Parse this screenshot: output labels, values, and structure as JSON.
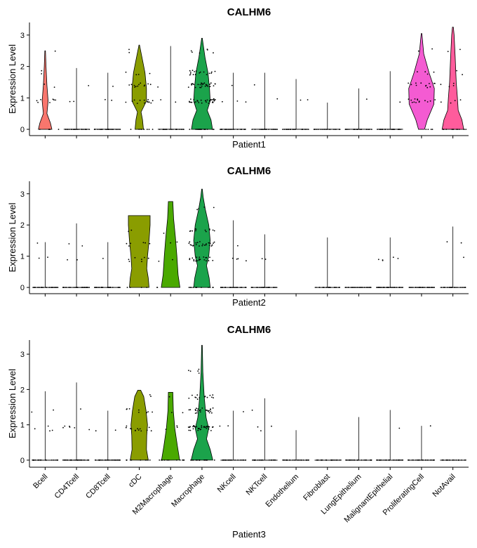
{
  "chart_data": [
    {
      "type": "violin",
      "title": "CALHM6",
      "xlabel": "Patient1",
      "ylabel": "Expression Level",
      "ylim": [
        -0.2,
        3.4
      ],
      "yticks": [
        0,
        1,
        2,
        3
      ],
      "categories": [
        "Bcell",
        "CD4Tcell",
        "CD8Tcell",
        "cDC",
        "M2Macrophage",
        "Macrophage",
        "NKcell",
        "NKTcell",
        "Endothelium",
        "Fibroblast",
        "LungEpithelium",
        "MalignantEpithelial",
        "ProliferatingCell",
        "NotAvail"
      ],
      "violins": [
        {
          "max": 2.5,
          "shape": [
            [
              0,
              0.45
            ],
            [
              0.2,
              0.35
            ],
            [
              0.5,
              0.12
            ],
            [
              0.9,
              0.2
            ],
            [
              1.4,
              0.12
            ],
            [
              2.0,
              0.06
            ],
            [
              2.5,
              0.02
            ]
          ]
        },
        {
          "max": 1.95,
          "shape": "flat"
        },
        {
          "max": 1.8,
          "shape": "flat"
        },
        {
          "max": 2.68,
          "shape": [
            [
              0,
              0.28
            ],
            [
              0.3,
              0.22
            ],
            [
              0.55,
              0.12
            ],
            [
              0.9,
              0.48
            ],
            [
              1.3,
              0.48
            ],
            [
              1.8,
              0.38
            ],
            [
              2.2,
              0.22
            ],
            [
              2.68,
              0.02
            ]
          ]
        },
        {
          "max": 2.65,
          "shape": "flat"
        },
        {
          "max": 2.9,
          "shape": [
            [
              0,
              0.7
            ],
            [
              0.3,
              0.6
            ],
            [
              0.6,
              0.35
            ],
            [
              0.9,
              0.55
            ],
            [
              1.3,
              0.5
            ],
            [
              1.8,
              0.4
            ],
            [
              2.3,
              0.2
            ],
            [
              2.9,
              0.02
            ]
          ]
        },
        {
          "max": 1.8,
          "shape": "flat"
        },
        {
          "max": 1.8,
          "shape": "flat"
        },
        {
          "max": 1.6,
          "shape": "flat"
        },
        {
          "max": 0.85,
          "shape": "flat"
        },
        {
          "max": 1.3,
          "shape": "flat"
        },
        {
          "max": 1.85,
          "shape": "flat"
        },
        {
          "max": 3.05,
          "shape": [
            [
              0,
              0.2
            ],
            [
              0.3,
              0.38
            ],
            [
              0.8,
              0.82
            ],
            [
              1.3,
              0.85
            ],
            [
              1.8,
              0.5
            ],
            [
              2.4,
              0.15
            ],
            [
              3.05,
              0.02
            ]
          ]
        },
        {
          "max": 3.25,
          "shape": [
            [
              0,
              0.72
            ],
            [
              0.3,
              0.6
            ],
            [
              0.6,
              0.35
            ],
            [
              1.0,
              0.3
            ],
            [
              1.5,
              0.22
            ],
            [
              2.3,
              0.15
            ],
            [
              3.0,
              0.08
            ],
            [
              3.25,
              0.03
            ]
          ]
        }
      ],
      "points": [
        {
          "density": [
            0.12,
            0.18,
            0.06,
            0.04,
            0.02
          ]
        },
        {
          "density": [
            0.6,
            0.05,
            0.02,
            0.01,
            0.0
          ]
        },
        {
          "density": [
            0.7,
            0.04,
            0.02,
            0.0,
            0.0
          ]
        },
        {
          "density": [
            0.2,
            0.35,
            0.3,
            0.1,
            0.04
          ]
        },
        {
          "density": [
            0.6,
            0.06,
            0.02,
            0.0,
            0.0
          ]
        },
        {
          "density": [
            0.5,
            0.8,
            0.7,
            0.45,
            0.15
          ]
        },
        {
          "density": [
            0.6,
            0.08,
            0.02,
            0.0,
            0.0
          ]
        },
        {
          "density": [
            0.6,
            0.03,
            0.02,
            0.0,
            0.0
          ]
        },
        {
          "density": [
            0.6,
            0.04,
            0.01,
            0.0,
            0.0
          ]
        },
        {
          "density": [
            0.5,
            0.02,
            0.0,
            0.0,
            0.0
          ]
        },
        {
          "density": [
            0.6,
            0.02,
            0.01,
            0.0,
            0.0
          ]
        },
        {
          "density": [
            0.7,
            0.03,
            0.01,
            0.0,
            0.0
          ]
        },
        {
          "density": [
            0.1,
            0.35,
            0.3,
            0.1,
            0.05
          ]
        },
        {
          "density": [
            0.3,
            0.1,
            0.1,
            0.06,
            0.04
          ]
        }
      ]
    },
    {
      "type": "violin",
      "title": "CALHM6",
      "xlabel": "Patient2",
      "ylabel": "Expression Level",
      "ylim": [
        -0.2,
        3.4
      ],
      "yticks": [
        0,
        1,
        2,
        3
      ],
      "categories": [
        "Bcell",
        "CD4Tcell",
        "CD8Tcell",
        "cDC",
        "M2Macrophage",
        "Macrophage",
        "NKcell",
        "NKTcell",
        "Endothelium",
        "Fibroblast",
        "LungEpithelium",
        "MalignantEpithelial",
        "ProliferatingCell",
        "NotAvail"
      ],
      "violins": [
        {
          "max": 1.45,
          "shape": "flat"
        },
        {
          "max": 2.05,
          "shape": "flat"
        },
        {
          "max": 1.45,
          "shape": "flat"
        },
        {
          "max": 2.3,
          "shape": [
            [
              0,
              0.65
            ],
            [
              0.3,
              0.6
            ],
            [
              0.6,
              0.5
            ],
            [
              1.0,
              0.55
            ],
            [
              1.5,
              0.65
            ],
            [
              2.0,
              0.72
            ],
            [
              2.3,
              0.72
            ]
          ]
        },
        {
          "max": 2.75,
          "shape": [
            [
              0,
              0.62
            ],
            [
              0.4,
              0.5
            ],
            [
              1.0,
              0.42
            ],
            [
              1.6,
              0.32
            ],
            [
              2.2,
              0.2
            ],
            [
              2.75,
              0.15
            ]
          ]
        },
        {
          "max": 3.15,
          "shape": [
            [
              0,
              0.55
            ],
            [
              0.3,
              0.48
            ],
            [
              0.7,
              0.3
            ],
            [
              1.0,
              0.45
            ],
            [
              1.5,
              0.55
            ],
            [
              2.0,
              0.45
            ],
            [
              2.5,
              0.22
            ],
            [
              2.9,
              0.08
            ],
            [
              3.15,
              0.02
            ]
          ]
        },
        {
          "max": 2.15,
          "shape": "flat"
        },
        {
          "max": 1.7,
          "shape": "flat"
        },
        {
          "max": 0.0,
          "shape": "none"
        },
        {
          "max": 1.6,
          "shape": "flat"
        },
        {
          "max": 0.0,
          "shape": "flat"
        },
        {
          "max": 1.6,
          "shape": "flat"
        },
        {
          "max": 0.0,
          "shape": "flat"
        },
        {
          "max": 1.95,
          "shape": "flat"
        }
      ],
      "points": [
        {
          "density": [
            0.6,
            0.04,
            0.02,
            0.0,
            0.0
          ]
        },
        {
          "density": [
            0.7,
            0.06,
            0.05,
            0.0,
            0.0
          ]
        },
        {
          "density": [
            0.7,
            0.02,
            0.01,
            0.0,
            0.0
          ]
        },
        {
          "density": [
            0.1,
            0.18,
            0.15,
            0.05,
            0.0
          ]
        },
        {
          "density": [
            0.05,
            0.04,
            0.04,
            0.02,
            0.0
          ]
        },
        {
          "density": [
            0.3,
            0.5,
            0.6,
            0.3,
            0.1
          ]
        },
        {
          "density": [
            0.6,
            0.1,
            0.03,
            0.0,
            0.0
          ]
        },
        {
          "density": [
            0.6,
            0.04,
            0.01,
            0.0,
            0.0
          ]
        },
        {
          "density": [
            0.02,
            0.0,
            0.0,
            0.0,
            0.0
          ]
        },
        {
          "density": [
            0.5,
            0.01,
            0.01,
            0.0,
            0.0
          ]
        },
        {
          "density": [
            0.6,
            0.0,
            0.0,
            0.0,
            0.0
          ]
        },
        {
          "density": [
            0.8,
            0.12,
            0.01,
            0.0,
            0.0
          ]
        },
        {
          "density": [
            0.7,
            0.0,
            0.0,
            0.0,
            0.0
          ]
        },
        {
          "density": [
            0.5,
            0.03,
            0.04,
            0.0,
            0.0
          ]
        }
      ]
    },
    {
      "type": "violin",
      "title": "CALHM6",
      "xlabel": "Patient3",
      "ylabel": "Expression Level",
      "ylim": [
        -0.2,
        3.4
      ],
      "yticks": [
        0,
        1,
        2,
        3
      ],
      "categories": [
        "Bcell",
        "CD4Tcell",
        "CD8Tcell",
        "cDC",
        "M2Macrophage",
        "Macrophage",
        "NKcell",
        "NKTcell",
        "Endothelium",
        "Fibroblast",
        "LungEpithelium",
        "MalignantEpithelial",
        "ProliferatingCell",
        "NotAvail"
      ],
      "violins": [
        {
          "max": 1.95,
          "shape": "flat"
        },
        {
          "max": 2.2,
          "shape": "flat"
        },
        {
          "max": 1.4,
          "shape": "flat"
        },
        {
          "max": 1.98,
          "shape": [
            [
              0,
              0.6
            ],
            [
              0.3,
              0.48
            ],
            [
              0.7,
              0.5
            ],
            [
              1.0,
              0.55
            ],
            [
              1.4,
              0.45
            ],
            [
              1.8,
              0.3
            ],
            [
              1.98,
              0.1
            ]
          ]
        },
        {
          "max": 1.92,
          "shape": [
            [
              0,
              0.6
            ],
            [
              0.4,
              0.45
            ],
            [
              0.9,
              0.28
            ],
            [
              1.4,
              0.18
            ],
            [
              1.92,
              0.15
            ]
          ]
        },
        {
          "max": 3.25,
          "shape": [
            [
              0,
              0.72
            ],
            [
              0.3,
              0.55
            ],
            [
              0.6,
              0.3
            ],
            [
              0.9,
              0.45
            ],
            [
              1.2,
              0.28
            ],
            [
              1.8,
              0.15
            ],
            [
              2.5,
              0.06
            ],
            [
              3.25,
              0.02
            ]
          ]
        },
        {
          "max": 1.4,
          "shape": "flat"
        },
        {
          "max": 1.75,
          "shape": "flat"
        },
        {
          "max": 0.85,
          "shape": "flat"
        },
        {
          "max": 0.0,
          "shape": "flat"
        },
        {
          "max": 1.22,
          "shape": "flat"
        },
        {
          "max": 1.42,
          "shape": "flat"
        },
        {
          "max": 0.97,
          "shape": "flat"
        },
        {
          "max": 0.0,
          "shape": "flat"
        }
      ],
      "points": [
        {
          "density": [
            0.6,
            0.1,
            0.05,
            0.0,
            0.0
          ]
        },
        {
          "density": [
            0.7,
            0.15,
            0.03,
            0.01,
            0.0
          ]
        },
        {
          "density": [
            0.7,
            0.04,
            0.01,
            0.0,
            0.0
          ]
        },
        {
          "density": [
            0.25,
            0.35,
            0.2,
            0.05,
            0.0
          ]
        },
        {
          "density": [
            0.3,
            0.08,
            0.05,
            0.02,
            0.0
          ]
        },
        {
          "density": [
            0.5,
            0.9,
            0.6,
            0.35,
            0.12
          ]
        },
        {
          "density": [
            0.6,
            0.06,
            0.02,
            0.0,
            0.0
          ]
        },
        {
          "density": [
            0.6,
            0.08,
            0.03,
            0.0,
            0.0
          ]
        },
        {
          "density": [
            0.6,
            0.04,
            0.0,
            0.0,
            0.0
          ]
        },
        {
          "density": [
            0.6,
            0.0,
            0.0,
            0.0,
            0.0
          ]
        },
        {
          "density": [
            0.6,
            0.01,
            0.0,
            0.0,
            0.0
          ]
        },
        {
          "density": [
            0.7,
            0.03,
            0.01,
            0.0,
            0.0
          ]
        },
        {
          "density": [
            0.6,
            0.03,
            0.0,
            0.0,
            0.0
          ]
        },
        {
          "density": [
            0.5,
            0.0,
            0.0,
            0.0,
            0.0
          ]
        }
      ]
    }
  ],
  "palette": [
    "#F8766D",
    "#DB8E00",
    "#AEA200",
    "#8A9D00",
    "#64B200",
    "#00A84D",
    "#00B8A0",
    "#00BADE",
    "#00A5FF",
    "#3B9CFF",
    "#B385FF",
    "#EF67EB",
    "#FF5DB5",
    "#FF6C91"
  ],
  "category_colors": [
    "#F8766D",
    "#E58700",
    "#C99800",
    "#8A9D00",
    "#4AA900",
    "#1BA34B",
    "#00BA88",
    "#00B9A8",
    "#00A8C8",
    "#00ADEE",
    "#849CF8",
    "#C77CFF",
    "#F45BD2",
    "#FF5C9C"
  ]
}
